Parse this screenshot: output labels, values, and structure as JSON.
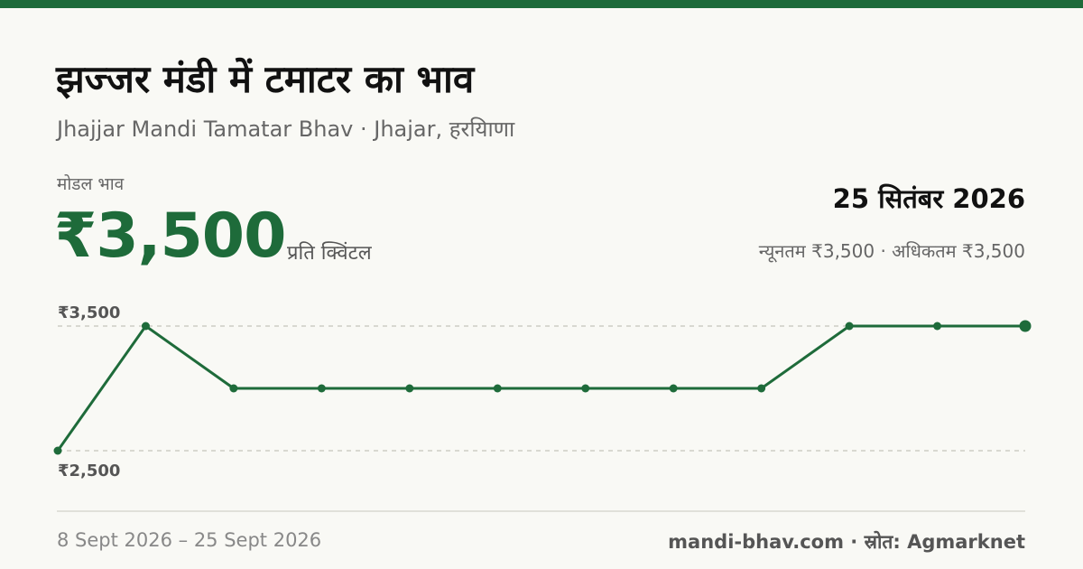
{
  "header": {
    "title": "झज्जर मंडी में टमाटर का भाव",
    "subtitle": "Jhajjar Mandi Tamatar Bhav · Jhajar, हरयिाणा"
  },
  "price": {
    "label": "मोडल भाव",
    "value": "₹3,500",
    "unit": "प्रति क्विंटल"
  },
  "summary": {
    "date": "25 सितंबर 2026",
    "range": "न्यूनतम ₹3,500 · अधिकतम ₹3,500"
  },
  "chart_data": {
    "type": "line",
    "x": [
      "8 Sept 2026",
      "",
      "",
      "",
      "",
      "",
      "",
      "",
      "",
      "",
      "",
      "25 Sept 2026"
    ],
    "series": [
      {
        "values": [
          2500,
          3500,
          3000,
          3000,
          3000,
          3000,
          3000,
          3000,
          3000,
          3500,
          3500,
          3500
        ]
      }
    ],
    "y_ticks": [
      {
        "value": 3500,
        "label": "₹3,500"
      },
      {
        "value": 2500,
        "label": "₹2,500"
      }
    ],
    "ylim": [
      2500,
      3500
    ],
    "grid": "dashed lines at labeled ticks",
    "color": "#1e6b3a"
  },
  "footer": {
    "date_range": "8 Sept 2026 – 25 Sept 2026",
    "source": "mandi-bhav.com · स्रोत: Agmarknet"
  }
}
